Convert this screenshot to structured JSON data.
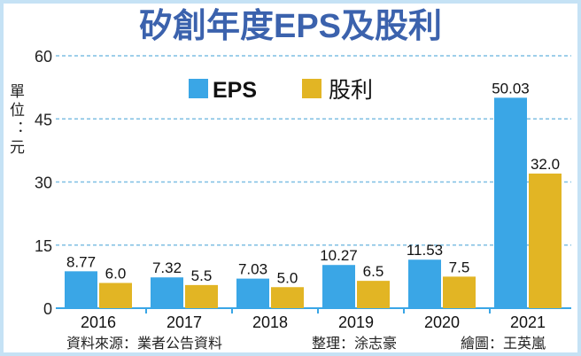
{
  "chart_data": {
    "type": "bar",
    "title": "矽創年度EPS及股利",
    "ylabel": "單位：元",
    "categories": [
      "2016",
      "2017",
      "2018",
      "2019",
      "2020",
      "2021"
    ],
    "series": [
      {
        "name": "EPS",
        "values": [
          8.77,
          7.32,
          7.03,
          10.27,
          11.53,
          50.03
        ],
        "labels": [
          "8.77",
          "7.32",
          "7.03",
          "10.27",
          "11.53",
          "50.03"
        ],
        "color": "#3aa6e6"
      },
      {
        "name": "股利",
        "values": [
          6.0,
          5.5,
          5.0,
          6.5,
          7.5,
          32.0
        ],
        "labels": [
          "6.0",
          "5.5",
          "5.0",
          "6.5",
          "7.5",
          "32.0"
        ],
        "color": "#e2b524"
      }
    ],
    "ylim": [
      0,
      60
    ],
    "yticks": [
      "0",
      "15",
      "30",
      "45",
      "60"
    ],
    "grid": true,
    "legend": "top-center"
  },
  "footer": {
    "source": "資料來源：業者公告資料",
    "editor": "整理：涂志豪",
    "artist": "繪圖：王英嵐"
  },
  "colors": {
    "title": "#3b62ad",
    "grid": "#7fbfe3",
    "frame": "#c5e2f5"
  }
}
